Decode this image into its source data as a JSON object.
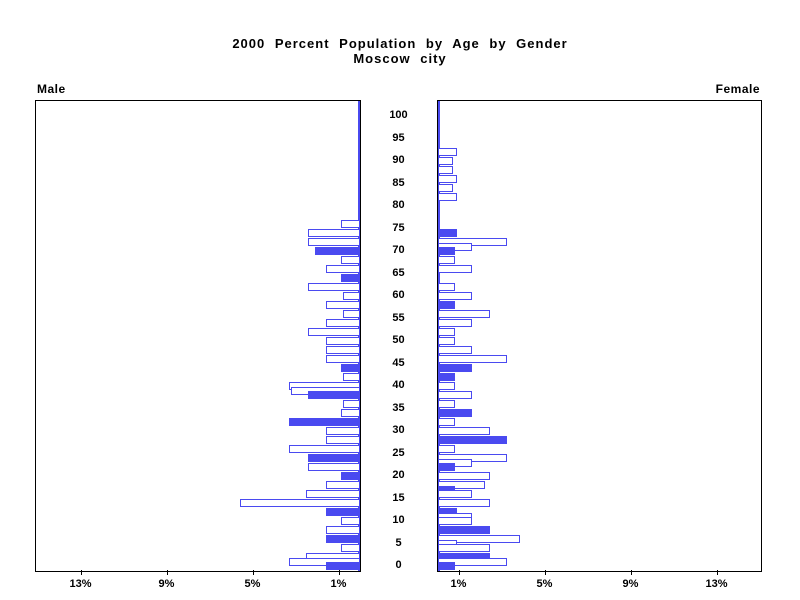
{
  "title": {
    "line1": "2000 Percent Population by Age by Gender",
    "line2": "Moscow city"
  },
  "panels": {
    "male_label": "Male",
    "female_label": "Female"
  },
  "age_axis": {
    "labels": [
      100,
      95,
      90,
      85,
      80,
      75,
      70,
      65,
      60,
      55,
      50,
      45,
      40,
      35,
      30,
      25,
      20,
      15,
      10,
      5,
      0
    ]
  },
  "x_axis": {
    "male_ticks": [
      {
        "label": "13%",
        "value": 13
      },
      {
        "label": "9%",
        "value": 9
      },
      {
        "label": "5%",
        "value": 5
      },
      {
        "label": "1%",
        "value": 1
      }
    ],
    "female_ticks": [
      {
        "label": "1%",
        "value": 1
      },
      {
        "label": "5%",
        "value": 5
      },
      {
        "label": "9%",
        "value": 9
      },
      {
        "label": "13%",
        "value": 13
      }
    ]
  },
  "colors": {
    "bar_blue": "#4a4af0",
    "axis_black": "#000000"
  },
  "chart_data": {
    "type": "bar",
    "subtype": "population-pyramid",
    "title": "2000 Percent Population by Age by Gender",
    "subtitle": "Moscow city",
    "unit": "percent of total population",
    "x_range_percent": [
      0,
      14.5
    ],
    "age_range": [
      0,
      100
    ],
    "age_tick_interval": 5,
    "x_tick_values_percent": [
      1,
      5,
      9,
      13
    ],
    "legend": "solid bars = filled (highlight) series, outline bars = open series",
    "male": [
      {
        "age": 76,
        "pct": 0.9,
        "fill": "outline"
      },
      {
        "age": 74,
        "pct": 2.4,
        "fill": "outline"
      },
      {
        "age": 72,
        "pct": 2.4,
        "fill": "outline"
      },
      {
        "age": 70,
        "pct": 2.1,
        "fill": "solid"
      },
      {
        "age": 68,
        "pct": 0.9,
        "fill": "outline"
      },
      {
        "age": 66,
        "pct": 1.6,
        "fill": "outline"
      },
      {
        "age": 64,
        "pct": 0.9,
        "fill": "solid"
      },
      {
        "age": 62,
        "pct": 2.4,
        "fill": "outline"
      },
      {
        "age": 60,
        "pct": 0.8,
        "fill": "outline"
      },
      {
        "age": 58,
        "pct": 1.6,
        "fill": "outline"
      },
      {
        "age": 56,
        "pct": 0.8,
        "fill": "outline"
      },
      {
        "age": 54,
        "pct": 1.6,
        "fill": "outline"
      },
      {
        "age": 52,
        "pct": 2.4,
        "fill": "outline"
      },
      {
        "age": 50,
        "pct": 1.6,
        "fill": "outline"
      },
      {
        "age": 48,
        "pct": 1.6,
        "fill": "outline"
      },
      {
        "age": 46,
        "pct": 1.6,
        "fill": "outline"
      },
      {
        "age": 44,
        "pct": 0.9,
        "fill": "solid"
      },
      {
        "age": 42,
        "pct": 0.8,
        "fill": "outline"
      },
      {
        "age": 40,
        "pct": 3.3,
        "fill": "outline"
      },
      {
        "age": 39,
        "pct": 3.2,
        "fill": "outline"
      },
      {
        "age": 38,
        "pct": 2.4,
        "fill": "solid"
      },
      {
        "age": 36,
        "pct": 0.8,
        "fill": "outline"
      },
      {
        "age": 34,
        "pct": 0.9,
        "fill": "outline"
      },
      {
        "age": 32,
        "pct": 3.3,
        "fill": "solid"
      },
      {
        "age": 30,
        "pct": 1.6,
        "fill": "outline"
      },
      {
        "age": 28,
        "pct": 1.6,
        "fill": "outline"
      },
      {
        "age": 26,
        "pct": 3.3,
        "fill": "outline"
      },
      {
        "age": 24,
        "pct": 2.4,
        "fill": "solid"
      },
      {
        "age": 22,
        "pct": 2.4,
        "fill": "outline"
      },
      {
        "age": 20,
        "pct": 0.9,
        "fill": "solid"
      },
      {
        "age": 18,
        "pct": 1.6,
        "fill": "outline"
      },
      {
        "age": 16,
        "pct": 2.5,
        "fill": "outline"
      },
      {
        "age": 14,
        "pct": 5.6,
        "fill": "outline"
      },
      {
        "age": 12,
        "pct": 1.6,
        "fill": "solid"
      },
      {
        "age": 10,
        "pct": 0.9,
        "fill": "outline"
      },
      {
        "age": 8,
        "pct": 1.6,
        "fill": "outline"
      },
      {
        "age": 6,
        "pct": 1.6,
        "fill": "solid"
      },
      {
        "age": 4,
        "pct": 0.9,
        "fill": "outline"
      },
      {
        "age": 2,
        "pct": 2.5,
        "fill": "outline"
      },
      {
        "age": 1,
        "pct": 3.3,
        "fill": "outline"
      },
      {
        "age": 0,
        "pct": 1.6,
        "fill": "solid"
      }
    ],
    "female": [
      {
        "age": 92,
        "pct": 0.9,
        "fill": "outline"
      },
      {
        "age": 90,
        "pct": 0.7,
        "fill": "outline"
      },
      {
        "age": 88,
        "pct": 0.7,
        "fill": "outline"
      },
      {
        "age": 86,
        "pct": 0.9,
        "fill": "outline"
      },
      {
        "age": 84,
        "pct": 0.7,
        "fill": "outline"
      },
      {
        "age": 82,
        "pct": 0.9,
        "fill": "outline"
      },
      {
        "age": 74,
        "pct": 0.9,
        "fill": "solid"
      },
      {
        "age": 72,
        "pct": 3.2,
        "fill": "outline"
      },
      {
        "age": 71,
        "pct": 1.6,
        "fill": "outline"
      },
      {
        "age": 70,
        "pct": 0.8,
        "fill": "solid"
      },
      {
        "age": 68,
        "pct": 0.8,
        "fill": "outline"
      },
      {
        "age": 66,
        "pct": 1.6,
        "fill": "outline"
      },
      {
        "age": 62,
        "pct": 0.8,
        "fill": "outline"
      },
      {
        "age": 60,
        "pct": 1.6,
        "fill": "outline"
      },
      {
        "age": 58,
        "pct": 0.8,
        "fill": "solid"
      },
      {
        "age": 56,
        "pct": 2.4,
        "fill": "outline"
      },
      {
        "age": 54,
        "pct": 1.6,
        "fill": "outline"
      },
      {
        "age": 52,
        "pct": 0.8,
        "fill": "outline"
      },
      {
        "age": 50,
        "pct": 0.8,
        "fill": "outline"
      },
      {
        "age": 48,
        "pct": 1.6,
        "fill": "outline"
      },
      {
        "age": 46,
        "pct": 3.2,
        "fill": "outline"
      },
      {
        "age": 44,
        "pct": 1.6,
        "fill": "solid"
      },
      {
        "age": 42,
        "pct": 0.8,
        "fill": "solid"
      },
      {
        "age": 40,
        "pct": 0.8,
        "fill": "outline"
      },
      {
        "age": 38,
        "pct": 1.6,
        "fill": "outline"
      },
      {
        "age": 36,
        "pct": 0.8,
        "fill": "outline"
      },
      {
        "age": 34,
        "pct": 1.6,
        "fill": "solid"
      },
      {
        "age": 32,
        "pct": 0.8,
        "fill": "outline"
      },
      {
        "age": 30,
        "pct": 2.4,
        "fill": "outline"
      },
      {
        "age": 28,
        "pct": 3.2,
        "fill": "solid"
      },
      {
        "age": 26,
        "pct": 0.8,
        "fill": "outline"
      },
      {
        "age": 24,
        "pct": 3.2,
        "fill": "outline"
      },
      {
        "age": 23,
        "pct": 1.6,
        "fill": "outline"
      },
      {
        "age": 22,
        "pct": 0.8,
        "fill": "solid"
      },
      {
        "age": 20,
        "pct": 2.4,
        "fill": "outline"
      },
      {
        "age": 18,
        "pct": 2.2,
        "fill": "outline"
      },
      {
        "age": 17,
        "pct": 0.8,
        "fill": "solid"
      },
      {
        "age": 16,
        "pct": 1.6,
        "fill": "outline"
      },
      {
        "age": 14,
        "pct": 2.4,
        "fill": "outline"
      },
      {
        "age": 12,
        "pct": 0.9,
        "fill": "solid"
      },
      {
        "age": 11,
        "pct": 1.6,
        "fill": "outline"
      },
      {
        "age": 10,
        "pct": 1.6,
        "fill": "outline"
      },
      {
        "age": 8,
        "pct": 2.4,
        "fill": "solid"
      },
      {
        "age": 6,
        "pct": 3.8,
        "fill": "outline"
      },
      {
        "age": 5,
        "pct": 0.9,
        "fill": "outline"
      },
      {
        "age": 4,
        "pct": 2.4,
        "fill": "outline"
      },
      {
        "age": 2,
        "pct": 2.4,
        "fill": "solid"
      },
      {
        "age": 1,
        "pct": 3.2,
        "fill": "outline"
      },
      {
        "age": 0,
        "pct": 0.8,
        "fill": "solid"
      }
    ]
  }
}
